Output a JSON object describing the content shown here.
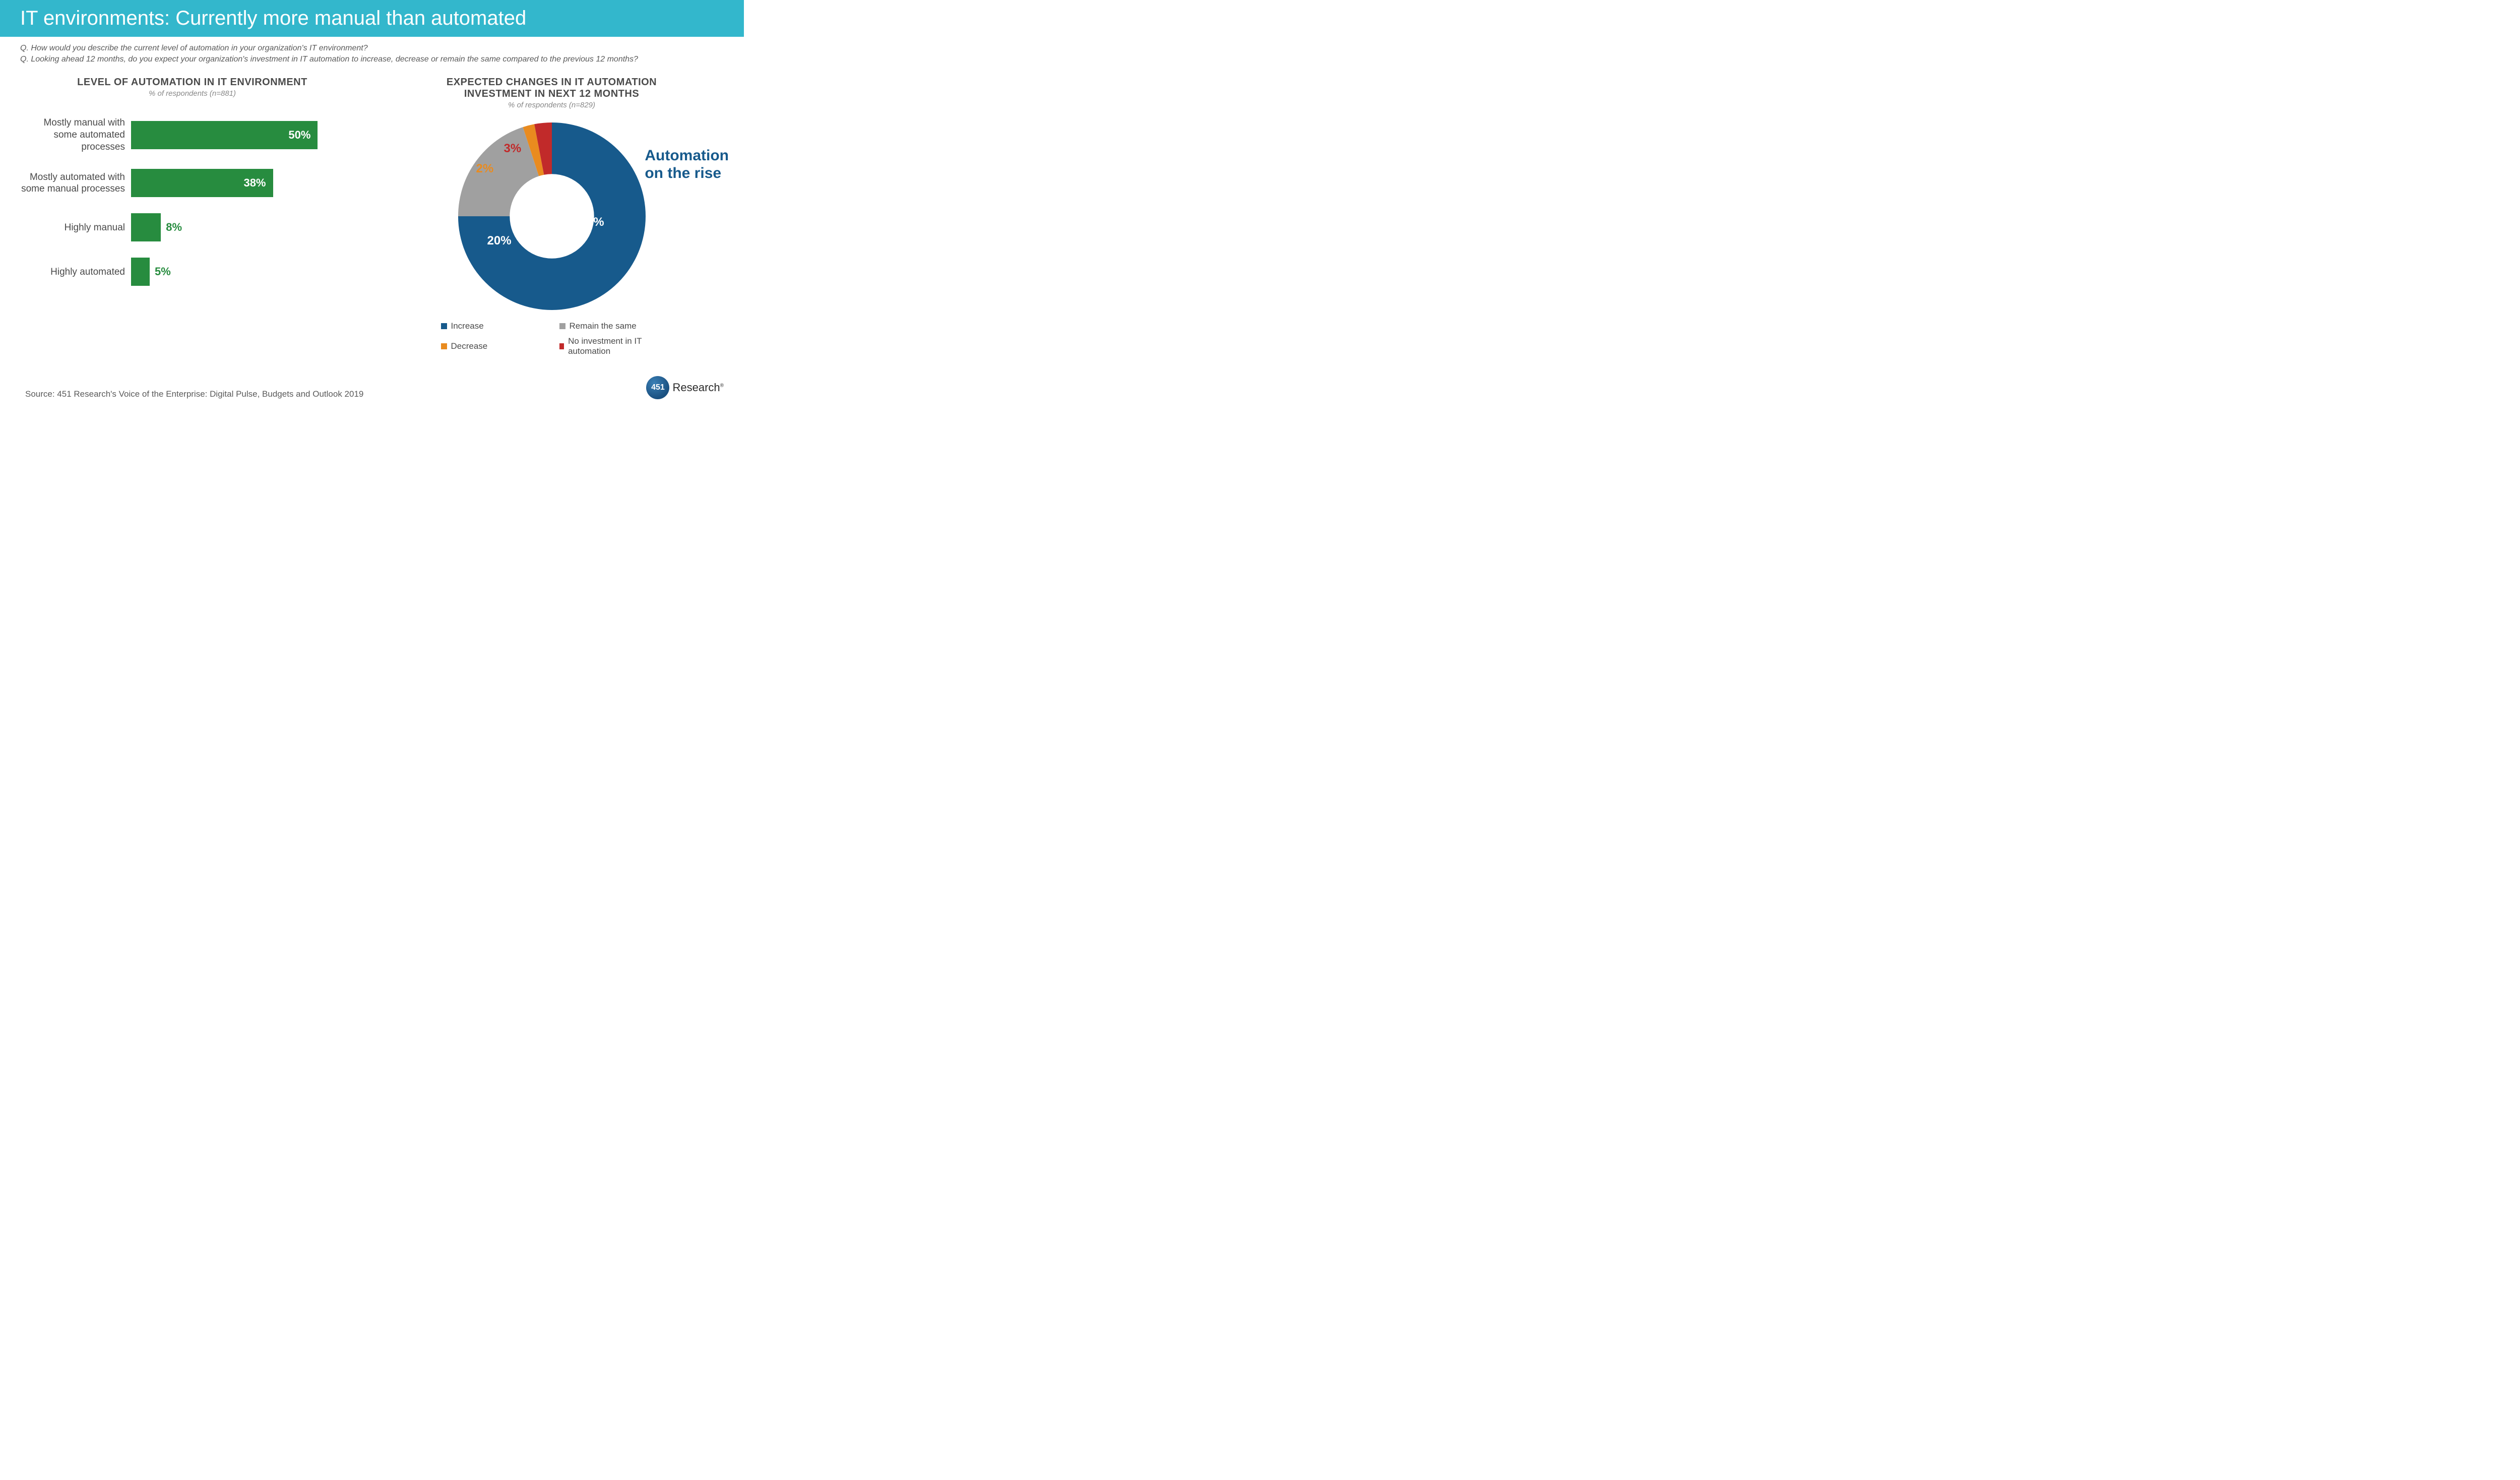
{
  "header": {
    "title": "IT environments: Currently more manual than automated",
    "bg_color": "#33b7cc",
    "text_color": "#ffffff",
    "font_size": 40
  },
  "questions": {
    "q1": "Q. How would you describe the current level of automation in your organization's IT environment?",
    "q2": "Q. Looking ahead 12 months, do you expect your organization's investment in IT automation to increase, decrease or remain the same compared to the previous 12 months?",
    "font_size": 16,
    "color": "#5a5a5a"
  },
  "bar_chart": {
    "type": "bar",
    "title": "LEVEL OF AUTOMATION IN IT ENVIRONMENT",
    "subtitle": "% of respondents (n=881)",
    "title_fontsize": 20,
    "subtitle_fontsize": 15,
    "bar_color": "#278c3f",
    "value_color_inside": "#ffffff",
    "value_color_outside": "#278c3f",
    "label_color": "#4a4a4a",
    "label_fontsize": 19,
    "value_fontsize": 22,
    "max_pct": 50,
    "bars": [
      {
        "label": "Mostly manual with some automated processes",
        "value": 50,
        "value_text": "50%",
        "inside": true
      },
      {
        "label": "Mostly automated with some manual processes",
        "value": 38,
        "value_text": "38%",
        "inside": true
      },
      {
        "label": "Highly manual",
        "value": 8,
        "value_text": "8%",
        "inside": false
      },
      {
        "label": "Highly automated",
        "value": 5,
        "value_text": "5%",
        "inside": false
      }
    ]
  },
  "donut_chart": {
    "type": "donut",
    "title_line1": "EXPECTED CHANGES IN IT AUTOMATION",
    "title_line2": "INVESTMENT IN NEXT 12 MONTHS",
    "subtitle": "% of respondents (n=829)",
    "title_fontsize": 20,
    "subtitle_fontsize": 15,
    "inner_radius_ratio": 0.45,
    "background_color": "#ffffff",
    "start_angle_deg": 0,
    "slices": [
      {
        "key": "increase",
        "label": "Increase",
        "value": 75,
        "value_text": "75%",
        "color": "#175a8c",
        "label_color": "#ffffff"
      },
      {
        "key": "remain",
        "label": "Remain the same",
        "value": 20,
        "value_text": "20%",
        "color": "#a0a0a0",
        "label_color": "#ffffff"
      },
      {
        "key": "decrease",
        "label": "Decrease",
        "value": 2,
        "value_text": "2%",
        "color": "#e98b1f",
        "label_color": "#e98b1f"
      },
      {
        "key": "none",
        "label": "No investment in IT automation",
        "value": 3,
        "value_text": "3%",
        "color": "#c12a2a",
        "label_color": "#c12a2a"
      }
    ],
    "callout": {
      "line1": "Automation",
      "line2": "on the rise",
      "color": "#175a8c",
      "font_size": 30
    },
    "legend_fontsize": 17
  },
  "source": {
    "text": "Source: 451 Research's Voice of the Enterprise: Digital Pulse, Budgets and Outlook 2019",
    "font_size": 17,
    "color": "#5a5a5a"
  },
  "logo": {
    "badge_text": "451",
    "brand_text": "Research"
  }
}
